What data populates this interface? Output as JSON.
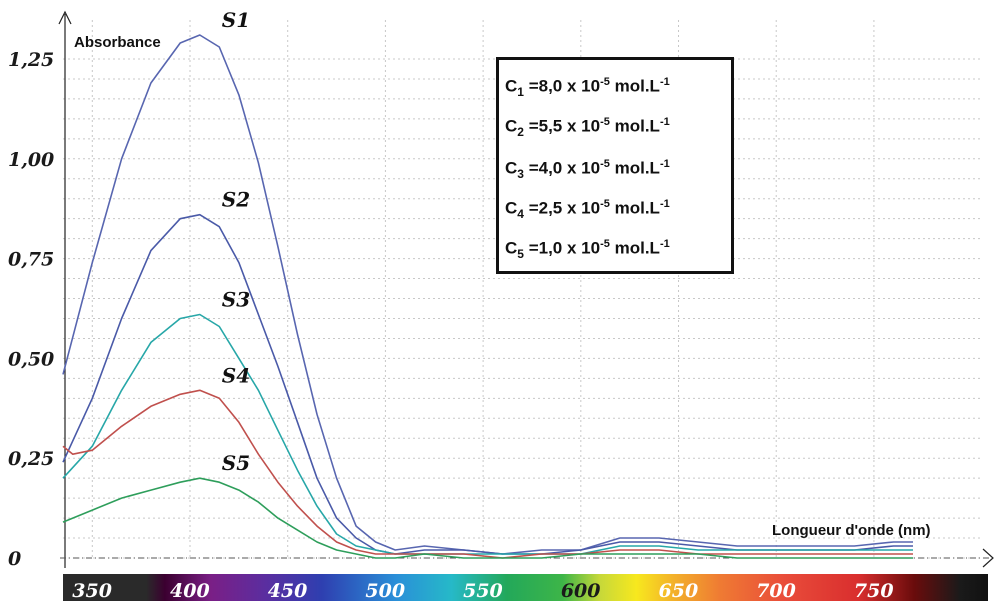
{
  "chart_data": {
    "type": "line",
    "ylabel": "Absorbance",
    "xlabel": "Longueur d'onde (nm)",
    "xlim": [
      335,
      770
    ],
    "ylim": [
      0,
      1.25
    ],
    "y_ticks": [
      "0",
      "0,25",
      "0,50",
      "0,75",
      "1,00",
      "1,25"
    ],
    "x_ticks": [
      "350",
      "400",
      "450",
      "500",
      "550",
      "600",
      "650",
      "700",
      "750"
    ],
    "grid": true,
    "spectrum_bar": true,
    "series": [
      {
        "name": "S1",
        "color": "#5866b0",
        "x": [
          335,
          350,
          365,
          380,
          395,
          405,
          415,
          425,
          435,
          445,
          455,
          465,
          475,
          485,
          495,
          505,
          520,
          540,
          560,
          580,
          600,
          620,
          640,
          660,
          680,
          700,
          720,
          740,
          760,
          770
        ],
        "y": [
          0.46,
          0.74,
          1.0,
          1.19,
          1.29,
          1.31,
          1.28,
          1.16,
          0.99,
          0.78,
          0.56,
          0.36,
          0.2,
          0.08,
          0.04,
          0.02,
          0.03,
          0.02,
          0.01,
          0.02,
          0.02,
          0.05,
          0.05,
          0.04,
          0.03,
          0.03,
          0.03,
          0.03,
          0.04,
          0.04
        ]
      },
      {
        "name": "S2",
        "color": "#4a5aa8",
        "x": [
          335,
          350,
          365,
          380,
          395,
          405,
          415,
          425,
          435,
          445,
          455,
          465,
          475,
          485,
          495,
          505,
          520,
          540,
          560,
          580,
          600,
          620,
          640,
          660,
          680,
          700,
          720,
          740,
          760,
          770
        ],
        "y": [
          0.24,
          0.4,
          0.6,
          0.77,
          0.85,
          0.86,
          0.83,
          0.74,
          0.61,
          0.48,
          0.34,
          0.2,
          0.1,
          0.05,
          0.02,
          0.01,
          0.02,
          0.02,
          0.01,
          0.01,
          0.02,
          0.04,
          0.04,
          0.03,
          0.02,
          0.02,
          0.02,
          0.02,
          0.03,
          0.03
        ]
      },
      {
        "name": "S3",
        "color": "#27a7a8",
        "x": [
          335,
          350,
          365,
          380,
          395,
          405,
          415,
          425,
          435,
          445,
          455,
          465,
          475,
          485,
          495,
          505,
          520,
          540,
          560,
          580,
          600,
          620,
          640,
          660,
          680,
          700,
          720,
          740,
          760,
          770
        ],
        "y": [
          0.2,
          0.28,
          0.42,
          0.54,
          0.6,
          0.61,
          0.58,
          0.5,
          0.42,
          0.32,
          0.22,
          0.13,
          0.06,
          0.03,
          0.02,
          0.01,
          0.01,
          0.01,
          0.01,
          0.01,
          0.01,
          0.03,
          0.03,
          0.02,
          0.02,
          0.02,
          0.02,
          0.02,
          0.02,
          0.02
        ]
      },
      {
        "name": "S4",
        "color": "#c0504d",
        "x": [
          335,
          340,
          350,
          365,
          380,
          395,
          405,
          415,
          425,
          435,
          445,
          455,
          465,
          475,
          485,
          495,
          505,
          520,
          540,
          560,
          580,
          600,
          620,
          640,
          660,
          680,
          700,
          720,
          740,
          760,
          770
        ],
        "y": [
          0.28,
          0.26,
          0.27,
          0.33,
          0.38,
          0.41,
          0.42,
          0.4,
          0.34,
          0.26,
          0.19,
          0.13,
          0.08,
          0.04,
          0.02,
          0.01,
          0.01,
          0.01,
          0.01,
          0.0,
          0.01,
          0.01,
          0.02,
          0.02,
          0.01,
          0.01,
          0.01,
          0.01,
          0.01,
          0.01,
          0.01
        ]
      },
      {
        "name": "S5",
        "color": "#2e9e5b",
        "x": [
          335,
          350,
          365,
          380,
          395,
          405,
          415,
          425,
          435,
          445,
          455,
          465,
          475,
          485,
          495,
          505,
          520,
          540,
          560,
          580,
          600,
          620,
          640,
          660,
          680,
          700,
          720,
          740,
          760,
          770
        ],
        "y": [
          0.09,
          0.12,
          0.15,
          0.17,
          0.19,
          0.2,
          0.19,
          0.17,
          0.14,
          0.1,
          0.07,
          0.04,
          0.02,
          0.01,
          0.0,
          0.0,
          0.01,
          0.0,
          0.0,
          0.0,
          0.01,
          0.01,
          0.01,
          0.01,
          0.0,
          0.0,
          0.0,
          0.0,
          0.0,
          0.0
        ]
      }
    ],
    "legend": [
      {
        "sym": "C",
        "sub": "1",
        "value": "=8,0 x 10",
        "exp": "-5",
        "unit": "mol.L",
        "unit_exp": "-1"
      },
      {
        "sym": "C",
        "sub": "2",
        "value": "=5,5 x 10",
        "exp": "-5",
        "unit": "mol.L",
        "unit_exp": "-1"
      },
      {
        "sym": "C",
        "sub": "3",
        "value": "=4,0 x 10",
        "exp": "-5",
        "unit": "mol.L",
        "unit_exp": "-1"
      },
      {
        "sym": "C",
        "sub": "4",
        "value": "=2,5 x 10",
        "exp": "-5",
        "unit": "mol.L",
        "unit_exp": "-1"
      },
      {
        "sym": "C",
        "sub": "5",
        "value": "=1,0 x 10",
        "exp": "-5",
        "unit": "mol.L",
        "unit_exp": "-1"
      }
    ],
    "legend_placement": "top-center"
  }
}
